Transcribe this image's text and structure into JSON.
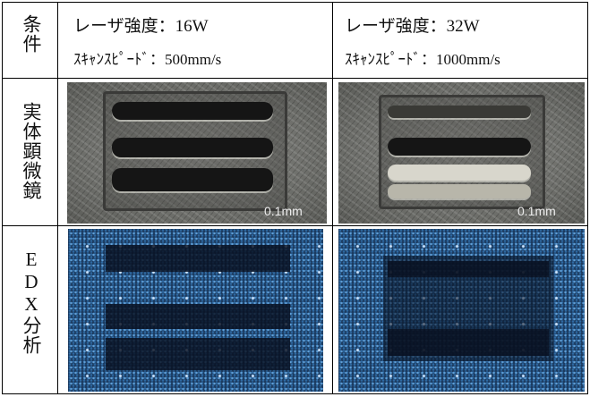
{
  "table": {
    "rows": [
      {
        "header": "条件",
        "cells": [
          {
            "lines": [
              "レーザ強度：16W",
              "ｽｷｬﾝｽﾋﾟｰﾄﾞ：500mm/s"
            ]
          },
          {
            "lines": [
              "レーザ強度：32W",
              "ｽｷｬﾝｽﾋﾟｰﾄﾞ：1000mm/s"
            ]
          }
        ]
      },
      {
        "header": "実体顕微鏡",
        "cells": [
          {
            "scale_label": "0.1mm"
          },
          {
            "scale_label": "0.1mm"
          }
        ]
      },
      {
        "header": "EDX分析"
      }
    ]
  }
}
